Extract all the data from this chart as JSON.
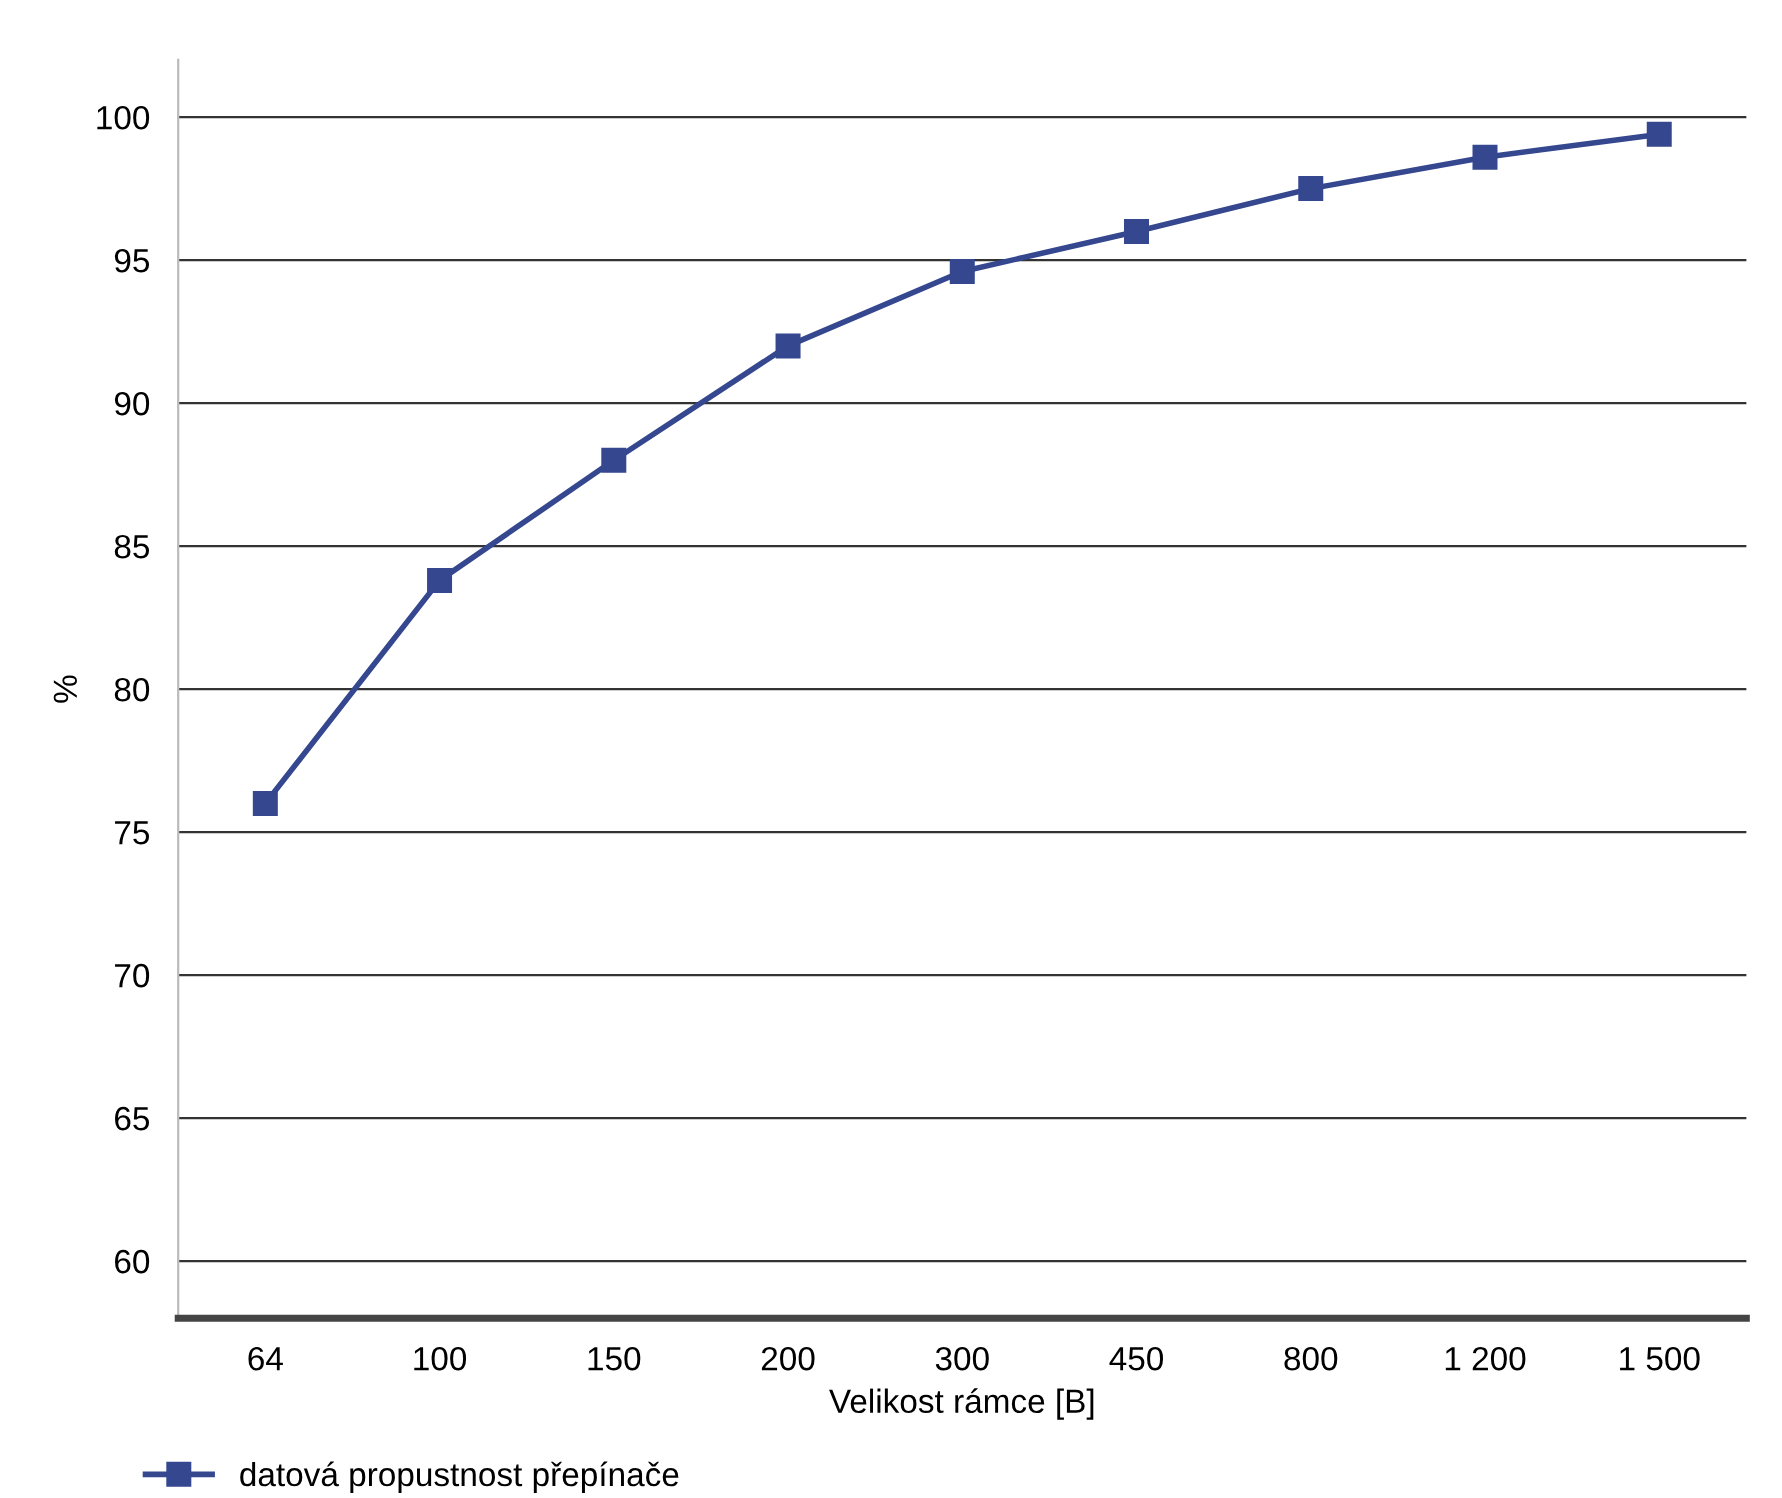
{
  "chart_data": {
    "type": "line",
    "xlabel": "Velikost rámce [B]",
    "ylabel": "%",
    "categories": [
      "64",
      "100",
      "150",
      "200",
      "300",
      "450",
      "800",
      "1 200",
      "1 500"
    ],
    "series": [
      {
        "name": "datová propustnost přepínače",
        "color": "#34478f",
        "values": [
          76.0,
          83.8,
          88.0,
          92.0,
          94.6,
          96.0,
          97.5,
          98.6,
          99.4
        ]
      }
    ],
    "ylim": [
      58,
      102
    ],
    "yticks": [
      60,
      65,
      70,
      75,
      80,
      85,
      90,
      95,
      100
    ],
    "grid": "y",
    "legend": "bottom left",
    "marker": "square",
    "line_style": "solid"
  }
}
